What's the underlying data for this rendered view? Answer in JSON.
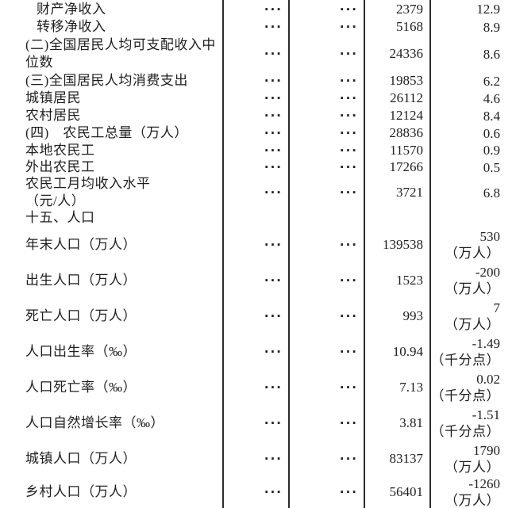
{
  "colors": {
    "background": "#ffffff",
    "text": "#1e1e1e",
    "rule_line": "#2c2c2c"
  },
  "table": {
    "columns": [
      "indicator",
      "dots-1",
      "dots-2",
      "value",
      "change"
    ],
    "rows": [
      {
        "label": "财产净收入",
        "indent": true,
        "section": false,
        "dots1": "···",
        "dots2": "···",
        "value": "2379",
        "change": "12.9",
        "change_unit": ""
      },
      {
        "label": "转移净收入",
        "indent": true,
        "section": false,
        "dots1": "···",
        "dots2": "···",
        "value": "5168",
        "change": "8.9",
        "change_unit": ""
      },
      {
        "label": "(二)全国居民人均可支配收入中\n位数",
        "indent": false,
        "section": false,
        "dots1": "···",
        "dots2": "···",
        "value": "24336",
        "change": "8.6",
        "change_unit": ""
      },
      {
        "label": "(三)全国居民人均消费支出",
        "indent": false,
        "section": false,
        "dots1": "···",
        "dots2": "···",
        "value": "19853",
        "change": "6.2",
        "change_unit": ""
      },
      {
        "label": "城镇居民",
        "indent": false,
        "section": false,
        "dots1": "···",
        "dots2": "···",
        "value": "26112",
        "change": "4.6",
        "change_unit": ""
      },
      {
        "label": "农村居民",
        "indent": false,
        "section": false,
        "dots1": "···",
        "dots2": "···",
        "value": "12124",
        "change": "8.4",
        "change_unit": ""
      },
      {
        "label": "(四)　农民工总量（万人）",
        "indent": false,
        "section": false,
        "dots1": "···",
        "dots2": "···",
        "value": "28836",
        "change": "0.6",
        "change_unit": ""
      },
      {
        "label": "本地农民工",
        "indent": false,
        "section": false,
        "dots1": "···",
        "dots2": "···",
        "value": "11570",
        "change": "0.9",
        "change_unit": ""
      },
      {
        "label": "外出农民工",
        "indent": false,
        "section": false,
        "dots1": "···",
        "dots2": "···",
        "value": "17266",
        "change": "0.5",
        "change_unit": ""
      },
      {
        "label": "农民工月均收入水平\n（元/人）",
        "indent": false,
        "section": false,
        "dots1": "···",
        "dots2": "···",
        "value": "3721",
        "change": "6.8",
        "change_unit": ""
      },
      {
        "label": "十五、人口",
        "indent": false,
        "section": true,
        "dots1": "",
        "dots2": "",
        "value": "",
        "change": "",
        "change_unit": ""
      },
      {
        "label": "年末人口（万人）",
        "indent": false,
        "section": false,
        "dots1": "···",
        "dots2": "···",
        "value": "139538",
        "change": "530",
        "change_unit": "（万人）"
      },
      {
        "label": "出生人口（万人）",
        "indent": false,
        "section": false,
        "dots1": "···",
        "dots2": "···",
        "value": "1523",
        "change": "-200",
        "change_unit": "（万人）"
      },
      {
        "label": "死亡人口（万人）",
        "indent": false,
        "section": false,
        "dots1": "···",
        "dots2": "···",
        "value": "993",
        "change": "7",
        "change_unit": "（万人）"
      },
      {
        "label": "人口出生率（‰）",
        "indent": false,
        "section": false,
        "dots1": "···",
        "dots2": "···",
        "value": "10.94",
        "change": "-1.49",
        "change_unit": "（千分点）"
      },
      {
        "label": "人口死亡率（‰）",
        "indent": false,
        "section": false,
        "dots1": "···",
        "dots2": "···",
        "value": "7.13",
        "change": "0.02",
        "change_unit": "（千分点）"
      },
      {
        "label": "人口自然增长率（‰）",
        "indent": false,
        "section": false,
        "dots1": "···",
        "dots2": "···",
        "value": "3.81",
        "change": "-1.51",
        "change_unit": "（千分点）"
      },
      {
        "label": "城镇人口（万人）",
        "indent": false,
        "section": false,
        "dots1": "···",
        "dots2": "···",
        "value": "83137",
        "change": "1790",
        "change_unit": "（万人）"
      },
      {
        "label": "乡村人口（万人）",
        "indent": false,
        "section": false,
        "dots1": "···",
        "dots2": "···",
        "value": "56401",
        "change": "-1260",
        "change_unit": "（万人）"
      }
    ]
  }
}
